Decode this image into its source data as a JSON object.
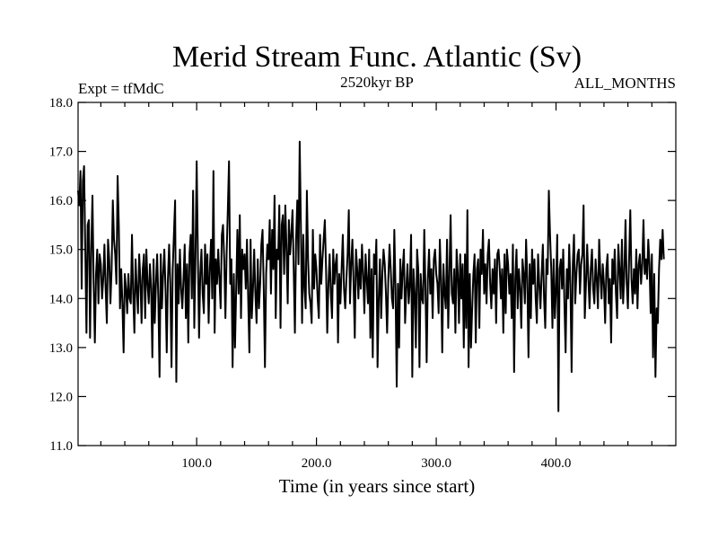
{
  "chart_data": {
    "type": "line",
    "title": "Merid Stream Func. Atlantic (Sv)",
    "subtitle_left": "Expt = tfMdC",
    "subtitle_center": "2520kyr BP",
    "subtitle_right": "ALL_MONTHS",
    "xlabel": "Time (in years since start)",
    "ylabel": "",
    "xlim": [
      1,
      500
    ],
    "ylim": [
      11.0,
      18.0
    ],
    "x_ticks": [
      100,
      200,
      300,
      400
    ],
    "x_tick_labels": [
      "100.0",
      "200.0",
      "300.0",
      "400.0"
    ],
    "y_ticks": [
      11,
      12,
      13,
      14,
      15,
      16,
      17,
      18
    ],
    "y_tick_labels": [
      "11.0",
      "12.0",
      "13.0",
      "14.0",
      "15.0",
      "16.0",
      "17.0",
      "18.0"
    ],
    "grid": false,
    "legend": "none",
    "series": [
      {
        "name": "Merid Stream Func. Atlantic",
        "x_start": 1,
        "x_step": 1,
        "values": [
          16.2,
          15.9,
          16.6,
          14.2,
          16.4,
          16.7,
          15.0,
          13.3,
          15.5,
          15.6,
          13.2,
          15.0,
          16.1,
          14.3,
          13.1,
          14.5,
          15.0,
          13.9,
          14.9,
          14.7,
          14.0,
          14.4,
          15.1,
          14.2,
          13.5,
          15.2,
          14.8,
          13.9,
          14.6,
          16.0,
          15.2,
          14.9,
          14.3,
          16.5,
          15.5,
          13.8,
          14.6,
          13.9,
          12.9,
          14.5,
          14.2,
          13.7,
          14.5,
          14.0,
          13.9,
          15.3,
          14.1,
          13.3,
          14.8,
          14.2,
          13.7,
          14.9,
          14.4,
          13.5,
          14.6,
          14.9,
          13.6,
          15.0,
          14.3,
          13.9,
          14.7,
          14.2,
          12.8,
          14.8,
          13.5,
          14.3,
          14.9,
          14.0,
          12.4,
          14.9,
          13.8,
          14.5,
          15.0,
          14.2,
          12.9,
          14.4,
          15.1,
          14.3,
          12.6,
          14.6,
          15.3,
          16.0,
          12.3,
          14.7,
          13.9,
          15.0,
          14.2,
          13.8,
          14.4,
          15.1,
          13.6,
          14.7,
          13.1,
          14.9,
          15.3,
          14.0,
          16.2,
          13.4,
          14.8,
          16.8,
          14.9,
          13.2,
          14.5,
          15.0,
          14.1,
          13.7,
          15.1,
          14.3,
          14.9,
          13.5,
          14.6,
          15.2,
          14.0,
          16.6,
          13.3,
          14.8,
          14.3,
          15.0,
          14.4,
          13.8,
          15.3,
          15.5,
          14.8,
          13.6,
          14.9,
          15.8,
          16.8,
          14.3,
          14.8,
          12.6,
          14.5,
          13.0,
          14.2,
          15.4,
          14.1,
          15.7,
          13.6,
          15.0,
          14.6,
          14.9,
          14.2,
          15.2,
          14.0,
          12.9,
          15.2,
          13.6,
          14.2,
          15.0,
          14.1,
          13.5,
          14.8,
          13.8,
          14.3,
          15.1,
          15.4,
          14.2,
          12.6,
          14.5,
          15.1,
          14.8,
          15.6,
          14.1,
          15.4,
          14.6,
          16.1,
          13.6,
          15.0,
          14.8,
          15.9,
          13.4,
          15.5,
          15.7,
          14.5,
          15.9,
          15.0,
          13.9,
          15.6,
          14.9,
          15.3,
          15.8,
          14.6,
          13.3,
          15.2,
          16.0,
          14.7,
          17.2,
          15.5,
          13.5,
          15.3,
          14.2,
          13.8,
          16.2,
          14.8,
          14.1,
          13.9,
          13.5,
          15.4,
          14.2,
          14.9,
          14.6,
          14.0,
          13.6,
          15.3,
          14.3,
          14.8,
          15.2,
          15.6,
          14.6,
          13.3,
          14.3,
          14.9,
          14.1,
          13.6,
          15.0,
          14.3,
          14.7,
          14.9,
          13.1,
          14.5,
          13.9,
          14.6,
          15.3,
          14.2,
          13.8,
          14.4,
          14.9,
          15.8,
          13.9,
          14.7,
          15.2,
          14.3,
          13.2,
          15.0,
          14.6,
          14.0,
          14.8,
          14.2,
          15.1,
          14.5,
          13.7,
          14.9,
          14.4,
          13.9,
          15.0,
          13.2,
          14.6,
          12.8,
          14.9,
          14.5,
          15.2,
          12.6,
          14.0,
          14.8,
          13.6,
          14.5,
          15.0,
          14.7,
          14.1,
          13.3,
          14.4,
          15.1,
          14.6,
          14.0,
          13.8,
          15.4,
          14.2,
          12.2,
          14.3,
          13.0,
          14.8,
          14.0,
          14.6,
          15.0,
          13.5,
          14.2,
          14.7,
          13.9,
          14.3,
          15.3,
          12.4,
          14.6,
          14.1,
          13.0,
          15.0,
          14.6,
          12.6,
          14.5,
          14.0,
          13.9,
          15.4,
          14.2,
          12.7,
          14.4,
          15.0,
          14.1,
          14.6,
          13.6,
          14.8,
          15.0,
          14.5,
          14.3,
          13.7,
          15.2,
          14.4,
          12.9,
          14.7,
          14.1,
          13.8,
          15.2,
          13.4,
          14.5,
          15.7,
          14.1,
          13.9,
          14.6,
          13.3,
          15.0,
          14.5,
          13.5,
          14.9,
          14.0,
          14.7,
          13.0,
          14.9,
          13.4,
          15.8,
          12.6,
          14.5,
          13.0,
          13.8,
          14.5,
          14.9,
          13.1,
          14.6,
          14.8,
          13.4,
          15.0,
          14.5,
          15.4,
          14.1,
          14.7,
          13.9,
          14.9,
          15.2,
          14.3,
          13.8,
          14.6,
          14.1,
          14.8,
          13.5,
          14.9,
          15.0,
          14.6,
          14.0,
          14.6,
          13.3,
          14.9,
          13.7,
          15.0,
          14.7,
          14.1,
          14.5,
          13.6,
          15.1,
          12.5,
          14.4,
          15.0,
          13.8,
          14.6,
          14.2,
          13.4,
          14.8,
          14.5,
          13.9,
          15.2,
          14.4,
          12.8,
          14.7,
          13.6,
          15.0,
          14.3,
          14.8,
          14.0,
          13.5,
          14.9,
          14.3,
          13.8,
          14.5,
          15.1,
          14.0,
          13.4,
          14.8,
          14.5,
          16.2,
          15.3,
          14.6,
          13.4,
          14.8,
          13.6,
          14.2,
          15.3,
          11.7,
          14.6,
          14.8,
          14.2,
          15.0,
          13.9,
          12.9,
          14.6,
          14.0,
          15.1,
          14.3,
          12.5,
          14.7,
          15.3,
          13.9,
          14.5,
          14.9,
          15.0,
          14.1,
          14.7,
          14.9,
          15.9,
          13.6,
          14.3,
          15.1,
          14.4,
          13.8,
          14.6,
          15.0,
          14.2,
          13.9,
          14.8,
          14.4,
          13.8,
          15.2,
          14.5,
          14.0,
          14.7,
          14.3,
          13.5,
          14.6,
          14.9,
          13.9,
          14.4,
          13.1,
          14.8,
          14.3,
          15.0,
          14.1,
          13.6,
          15.1,
          14.6,
          14.0,
          15.2,
          13.9,
          14.5,
          15.6,
          14.3,
          13.8,
          14.8,
          15.8,
          14.4,
          13.9,
          14.6,
          14.1,
          15.0,
          13.8,
          14.7,
          14.9,
          14.3,
          14.7,
          15.6,
          14.5,
          14.8,
          14.4,
          15.2,
          14.7,
          13.7,
          14.9,
          12.8,
          14.5,
          12.4,
          13.8,
          13.5,
          14.6,
          15.2,
          14.8,
          15.4,
          14.8
        ]
      }
    ]
  }
}
